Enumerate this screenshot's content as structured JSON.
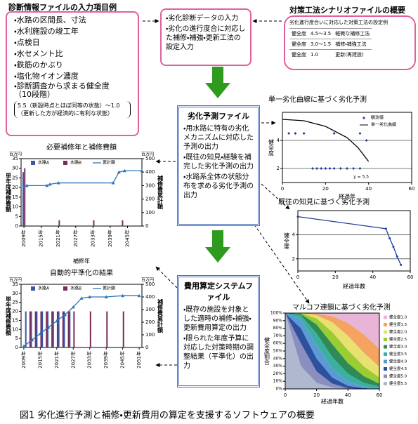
{
  "input_box": {
    "title": "診断情報ファイルの入力項目例",
    "items": [
      "・水路の区間長、寸法",
      "・水利施設の竣工年",
      "・点検日",
      "・水セメント比",
      "・鉄筋のかぶり",
      "・塩化物イオン濃度",
      "・診断調査から求まる健全度　（10段階）"
    ],
    "note": "5.5（新設時点とほぼ同等の状態）～1.0（更新した方が経済的に有利な状態）"
  },
  "input_step": {
    "items": [
      "・劣化診断データの入力",
      "・劣化の進行度合に対応した補修・補強・更新工法の設定入力"
    ]
  },
  "scenario": {
    "title": "対策工法シナリオファイルの概要",
    "table_title": "劣化進行度合いに対応した対策工法の設定例",
    "rows": [
      [
        "健全度",
        "4.5～3.5",
        "軽微な補修工法"
      ],
      [
        "健全度",
        "3.0～1.5",
        "補修・補強工法"
      ],
      [
        "健全度",
        "1.0",
        "更新(再建設)"
      ]
    ]
  },
  "prediction_box": {
    "title": "劣化予測ファイル",
    "items": [
      "・用水路に特有の劣化メカニズムに対応した予測の出力",
      "・既往の知見・経験を補完した劣化予測の出力",
      "・水路系全体の状態分布を求める劣化予測の出力"
    ]
  },
  "cost_box": {
    "title": "費用算定システムファイル",
    "items": [
      "・既存の施設を対象とした適時の補修・補強・更新費用算定の出力",
      "・限られた年度予算に対応した対策時期の調整結果（平準化）の出力"
    ]
  },
  "caption": "図1 劣化進行予測と補修・更新費用の算定を支援するソフトウェアの概要",
  "chart_data": [
    {
      "type": "bar",
      "title": "必要補修年と補修費額",
      "xlabel": "補修年",
      "ylabel": "単年度補修費額",
      "y2label": "補修費累計額",
      "y_unit": "百万円",
      "y2_unit": "百万円",
      "xlim": [
        2008,
        2050
      ],
      "xticks": [
        {
          "value": 2009,
          "label": "2009年"
        },
        {
          "value": 2015,
          "label": "2015年"
        },
        {
          "value": 2021,
          "label": "2021年"
        },
        {
          "value": 2027,
          "label": "2027年"
        },
        {
          "value": 2033,
          "label": "2033年"
        },
        {
          "value": 2039,
          "label": "2039年"
        },
        {
          "value": 2045,
          "label": "2045年"
        }
      ],
      "ylim": [
        0,
        35
      ],
      "yticks": [
        0,
        5,
        10,
        15,
        20,
        25,
        30,
        35
      ],
      "y2lim": [
        0,
        500
      ],
      "y2ticks": [
        0,
        100,
        200,
        300,
        400,
        500
      ],
      "series": [
        {
          "name": "水路A",
          "color": "#3b57a6",
          "x": [
            2009
          ],
          "values": [
            28
          ]
        },
        {
          "name": "水路B",
          "color": "#7b2d5a",
          "x": [
            2009,
            2021,
            2033,
            2043
          ],
          "values": [
            30,
            3,
            3,
            3
          ]
        },
        {
          "name": "累計額",
          "color": "#2e75b6",
          "axis": "y2",
          "x": [
            2009,
            2010,
            2017,
            2018,
            2021,
            2040,
            2042,
            2044,
            2050
          ],
          "values": [
            290,
            300,
            300,
            310,
            320,
            320,
            400,
            410,
            410
          ]
        }
      ]
    },
    {
      "type": "bar",
      "title": "自動的平準化の結果",
      "ylabel": "単年度補修費額",
      "y2label": "補修費累計額",
      "y_unit": "百万円",
      "y2_unit": "百万円",
      "xlim": [
        2008,
        2052
      ],
      "xticks": [
        {
          "value": 2009,
          "label": "2009年"
        },
        {
          "value": 2015,
          "label": "2015年"
        },
        {
          "value": 2021,
          "label": "2021年"
        },
        {
          "value": 2027,
          "label": "2027年"
        },
        {
          "value": 2033,
          "label": "2033年"
        },
        {
          "value": 2039,
          "label": "2039年"
        },
        {
          "value": 2045,
          "label": "2045年"
        },
        {
          "value": 2051,
          "label": "2051年"
        }
      ],
      "ylim": [
        0,
        35
      ],
      "yticks": [
        0,
        5,
        10,
        15,
        20,
        25,
        30,
        35
      ],
      "y2lim": [
        0,
        500
      ],
      "y2ticks": [
        0,
        100,
        200,
        300,
        400,
        500
      ],
      "series": [
        {
          "name": "水路A",
          "color": "#3b57a6",
          "x": [
            2010,
            2012,
            2014,
            2016,
            2018,
            2020,
            2022,
            2024,
            2026
          ],
          "values": [
            20,
            20,
            20,
            20,
            20,
            20,
            20,
            20,
            20
          ]
        },
        {
          "name": "水路B",
          "color": "#7b2d5a",
          "x": [
            2011,
            2013,
            2015,
            2017,
            2019,
            2021,
            2023,
            2025,
            2027,
            2033,
            2039,
            2045
          ],
          "values": [
            20,
            20,
            20,
            20,
            20,
            20,
            20,
            20,
            20,
            20,
            20,
            20
          ]
        },
        {
          "name": "累計額",
          "color": "#2e75b6",
          "axis": "y2",
          "x": [
            2009,
            2012,
            2015,
            2018,
            2021,
            2024,
            2027,
            2030,
            2033,
            2039,
            2045,
            2051
          ],
          "values": [
            10,
            60,
            110,
            160,
            210,
            260,
            320,
            390,
            400,
            400,
            410,
            410
          ]
        }
      ]
    },
    {
      "type": "scatter",
      "title": "単一劣化曲線に基づく劣化予測",
      "xlabel": "経過年",
      "ylabel": "健全度",
      "annotation": "y = 5.5",
      "xlim": [
        0,
        60
      ],
      "xticks": [
        0,
        20,
        40,
        60
      ],
      "ylim": [
        1,
        6
      ],
      "yticks": [
        2,
        4
      ],
      "grid": true,
      "series": [
        {
          "name": "観測値",
          "color": "#1f3f9f",
          "x": [
            3,
            6,
            10,
            24,
            36,
            14,
            16,
            18,
            20,
            22,
            24,
            27,
            30,
            33,
            36,
            39
          ],
          "values": [
            4.5,
            4.5,
            4.5,
            4.5,
            4.5,
            2,
            2,
            2,
            2,
            2,
            2,
            2,
            2,
            2,
            2,
            4
          ]
        },
        {
          "name": "単一劣化曲線",
          "color": "#000000",
          "kind": "line",
          "x": [
            0,
            10,
            20,
            30,
            35,
            40
          ],
          "values": [
            5.5,
            5.4,
            5.0,
            4.2,
            3.5,
            2.5
          ]
        }
      ]
    },
    {
      "type": "line",
      "title": "既往の知見に基づく劣化予測",
      "xlabel": "経過年数",
      "ylabel": "健全度",
      "xlim": [
        0,
        60
      ],
      "xticks": [
        0,
        20,
        40,
        60
      ],
      "ylim": [
        1,
        6
      ],
      "yticks": [
        2,
        4
      ],
      "grid": true,
      "series": [
        {
          "color": "#1f3f9f",
          "x": [
            0,
            47,
            49,
            51,
            53,
            55
          ],
          "values": [
            5.5,
            4.5,
            3.7,
            3.0,
            2.2,
            1.5
          ]
        }
      ]
    },
    {
      "type": "area",
      "title": "マルコフ連鎖に基づく劣化予測",
      "xlabel": "経過年数",
      "ylabel": "健全度割合",
      "x": [
        0,
        10,
        20,
        30,
        40,
        50,
        60
      ],
      "xlim": [
        0,
        60
      ],
      "xticks": [
        0,
        20,
        40,
        60
      ],
      "ylim": [
        0,
        100
      ],
      "yticks": [
        {
          "value": 0,
          "label": "0%"
        },
        {
          "value": 10,
          "label": "10%"
        },
        {
          "value": 20,
          "label": "20%"
        },
        {
          "value": 30,
          "label": "30%"
        },
        {
          "value": 40,
          "label": "40%"
        },
        {
          "value": 50,
          "label": "50%"
        },
        {
          "value": 60,
          "label": "60%"
        },
        {
          "value": 70,
          "label": "70%"
        },
        {
          "value": 80,
          "label": "80%"
        },
        {
          "value": 90,
          "label": "90%"
        },
        {
          "value": 100,
          "label": "100%"
        }
      ],
      "series": [
        {
          "name": "健全度1.0",
          "color": "#e8b4d8",
          "values": [
            0,
            0,
            1,
            4,
            13,
            28,
            47
          ]
        },
        {
          "name": "健全度1.5",
          "color": "#f4a460",
          "values": [
            0,
            0,
            2,
            8,
            17,
            24,
            24
          ]
        },
        {
          "name": "健全度2.0",
          "color": "#e8e070",
          "values": [
            0,
            0,
            4,
            13,
            19,
            18,
            14
          ]
        },
        {
          "name": "健全度2.5",
          "color": "#9acd32",
          "values": [
            0,
            1,
            8,
            16,
            17,
            13,
            8
          ]
        },
        {
          "name": "健全度3.0",
          "color": "#2e8b57",
          "values": [
            0,
            2,
            12,
            17,
            14,
            9,
            4
          ]
        },
        {
          "name": "健全度3.5",
          "color": "#3cb0a0",
          "values": [
            0,
            5,
            15,
            15,
            10,
            5,
            2
          ]
        },
        {
          "name": "健全度4.0",
          "color": "#5b9bd5",
          "values": [
            0,
            12,
            18,
            12,
            6,
            2,
            1
          ]
        },
        {
          "name": "健全度4.5",
          "color": "#2f4f9f",
          "values": [
            0,
            20,
            17,
            8,
            3,
            1,
            0
          ]
        },
        {
          "name": "健全度5.0",
          "color": "#8a8fc0",
          "values": [
            0,
            30,
            15,
            5,
            1,
            0,
            0
          ]
        },
        {
          "name": "健全度5.5",
          "color": "#b0b8d0",
          "values": [
            100,
            30,
            8,
            2,
            0,
            0,
            0
          ]
        }
      ]
    }
  ]
}
